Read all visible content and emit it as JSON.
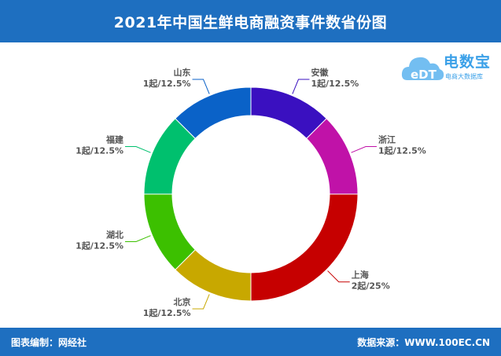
{
  "header": {
    "title": "2021年中国生鲜电商融资事件数省份图"
  },
  "footer": {
    "left": "图表编制：网经社",
    "right": "数据来源：WWW.100EC.CN"
  },
  "logo": {
    "brand": "电数宝",
    "sub": "电商大数据库",
    "mark": "eDT"
  },
  "colors": {
    "header": "#1e6fc0",
    "label_text": "#555555"
  },
  "chart_data": {
    "type": "pie",
    "donut": true,
    "title": "2021年中国生鲜电商融资事件数省份图",
    "slices": [
      {
        "name": "安徽",
        "value": 1,
        "label": "1起/12.5%",
        "color": "#3a10c0"
      },
      {
        "name": "浙江",
        "value": 1,
        "label": "1起/12.5%",
        "color": "#c012a8"
      },
      {
        "name": "上海",
        "value": 2,
        "label": "2起/25%",
        "color": "#c60000"
      },
      {
        "name": "北京",
        "value": 1,
        "label": "1起/12.5%",
        "color": "#c8a800"
      },
      {
        "name": "湖北",
        "value": 1,
        "label": "1起/12.5%",
        "color": "#3cc000"
      },
      {
        "name": "福建",
        "value": 1,
        "label": "1起/12.5%",
        "color": "#00c06e"
      },
      {
        "name": "山东",
        "value": 1,
        "label": "1起/12.5%",
        "color": "#0a62c8"
      }
    ]
  }
}
